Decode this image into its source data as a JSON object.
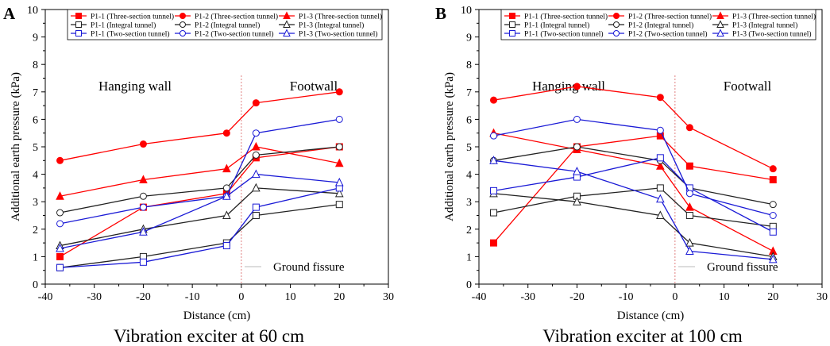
{
  "colors": {
    "red": "#ff0000",
    "black": "#222222",
    "blue": "#1a1ad6",
    "fissure": "#e08080"
  },
  "chart_data": [
    {
      "type": "line",
      "panel_label": "A",
      "caption": "Vibration exciter at 60 cm",
      "xlabel": "Distance (cm)",
      "ylabel": "Additional earth pressure (kPa)",
      "xlim": [
        -40,
        30
      ],
      "ylim": [
        0,
        10
      ],
      "xticks": [
        -40,
        -30,
        -20,
        -10,
        0,
        10,
        20,
        30
      ],
      "yticks": [
        0,
        1,
        2,
        3,
        4,
        5,
        6,
        7,
        8,
        9,
        10
      ],
      "x": [
        -37,
        -20,
        -3,
        3,
        20
      ],
      "region_left": "Hanging wall",
      "region_right": "Footwall",
      "fissure_label": "Ground fissure",
      "fissure_x": 0,
      "legend_position": "top",
      "series": [
        {
          "name": "P1-1 (Three-section tunnel)",
          "color": "red",
          "marker": "square",
          "filled": true,
          "values": [
            1.0,
            2.8,
            3.3,
            4.6,
            5.0
          ]
        },
        {
          "name": "P1-2 (Three-section tunnel)",
          "color": "red",
          "marker": "circle",
          "filled": true,
          "values": [
            4.5,
            5.1,
            5.5,
            6.6,
            7.0
          ]
        },
        {
          "name": "P1-3 (Three-section tunnel)",
          "color": "red",
          "marker": "triangle",
          "filled": true,
          "values": [
            3.2,
            3.8,
            4.2,
            5.0,
            4.4
          ]
        },
        {
          "name": "P1-1 (Integral tunnel)",
          "color": "black",
          "marker": "square",
          "filled": false,
          "values": [
            0.6,
            1.0,
            1.5,
            2.5,
            2.9
          ]
        },
        {
          "name": "P1-2 (Integral tunnel)",
          "color": "black",
          "marker": "circle",
          "filled": false,
          "values": [
            2.6,
            3.2,
            3.5,
            4.7,
            5.0
          ]
        },
        {
          "name": "P1-3 (Integral tunnel)",
          "color": "black",
          "marker": "triangle",
          "filled": false,
          "values": [
            1.4,
            2.0,
            2.5,
            3.5,
            3.3
          ]
        },
        {
          "name": "P1-1 (Two-section tunnel)",
          "color": "blue",
          "marker": "square",
          "filled": false,
          "values": [
            0.6,
            0.8,
            1.4,
            2.8,
            3.5
          ]
        },
        {
          "name": "P1-2 (Two-section tunnel)",
          "color": "blue",
          "marker": "circle",
          "filled": false,
          "values": [
            2.2,
            2.8,
            3.2,
            5.5,
            6.0
          ]
        },
        {
          "name": "P1-3 (Two-section tunnel)",
          "color": "blue",
          "marker": "triangle",
          "filled": false,
          "values": [
            1.3,
            1.9,
            3.2,
            4.0,
            3.7
          ]
        }
      ]
    },
    {
      "type": "line",
      "panel_label": "B",
      "caption": "Vibration exciter at 100 cm",
      "xlabel": "Distance (cm)",
      "ylabel": "Additional earth pressure (kPa)",
      "xlim": [
        -40,
        30
      ],
      "ylim": [
        0,
        10
      ],
      "xticks": [
        -40,
        -30,
        -20,
        -10,
        0,
        10,
        20,
        30
      ],
      "yticks": [
        0,
        1,
        2,
        3,
        4,
        5,
        6,
        7,
        8,
        9,
        10
      ],
      "x": [
        -37,
        -20,
        -3,
        3,
        20
      ],
      "region_left": "Hanging wall",
      "region_right": "Footwall",
      "fissure_label": "Ground fissure",
      "fissure_x": 0,
      "legend_position": "top",
      "series": [
        {
          "name": "P1-1 (Three-section tunnel)",
          "color": "red",
          "marker": "square",
          "filled": true,
          "values": [
            1.5,
            5.0,
            5.4,
            4.3,
            3.8
          ]
        },
        {
          "name": "P1-2 (Three-section tunnel)",
          "color": "red",
          "marker": "circle",
          "filled": true,
          "values": [
            6.7,
            7.2,
            6.8,
            5.7,
            4.2
          ]
        },
        {
          "name": "P1-3 (Three-section tunnel)",
          "color": "red",
          "marker": "triangle",
          "filled": true,
          "values": [
            5.5,
            4.9,
            4.3,
            2.8,
            1.2
          ]
        },
        {
          "name": "P1-1 (Integral tunnel)",
          "color": "black",
          "marker": "square",
          "filled": false,
          "values": [
            2.6,
            3.2,
            3.5,
            2.5,
            2.1
          ]
        },
        {
          "name": "P1-2 (Integral tunnel)",
          "color": "black",
          "marker": "circle",
          "filled": false,
          "values": [
            4.5,
            5.0,
            4.5,
            3.5,
            2.9
          ]
        },
        {
          "name": "P1-3 (Integral tunnel)",
          "color": "black",
          "marker": "triangle",
          "filled": false,
          "values": [
            3.3,
            3.0,
            2.5,
            1.5,
            1.0
          ]
        },
        {
          "name": "P1-1 (Two-section tunnel)",
          "color": "blue",
          "marker": "square",
          "filled": false,
          "values": [
            3.4,
            3.9,
            4.6,
            3.5,
            1.9
          ]
        },
        {
          "name": "P1-2 (Two-section tunnel)",
          "color": "blue",
          "marker": "circle",
          "filled": false,
          "values": [
            5.4,
            6.0,
            5.6,
            3.3,
            2.5
          ]
        },
        {
          "name": "P1-3 (Two-section tunnel)",
          "color": "blue",
          "marker": "triangle",
          "filled": false,
          "values": [
            4.5,
            4.1,
            3.1,
            1.2,
            0.9
          ]
        }
      ]
    }
  ]
}
